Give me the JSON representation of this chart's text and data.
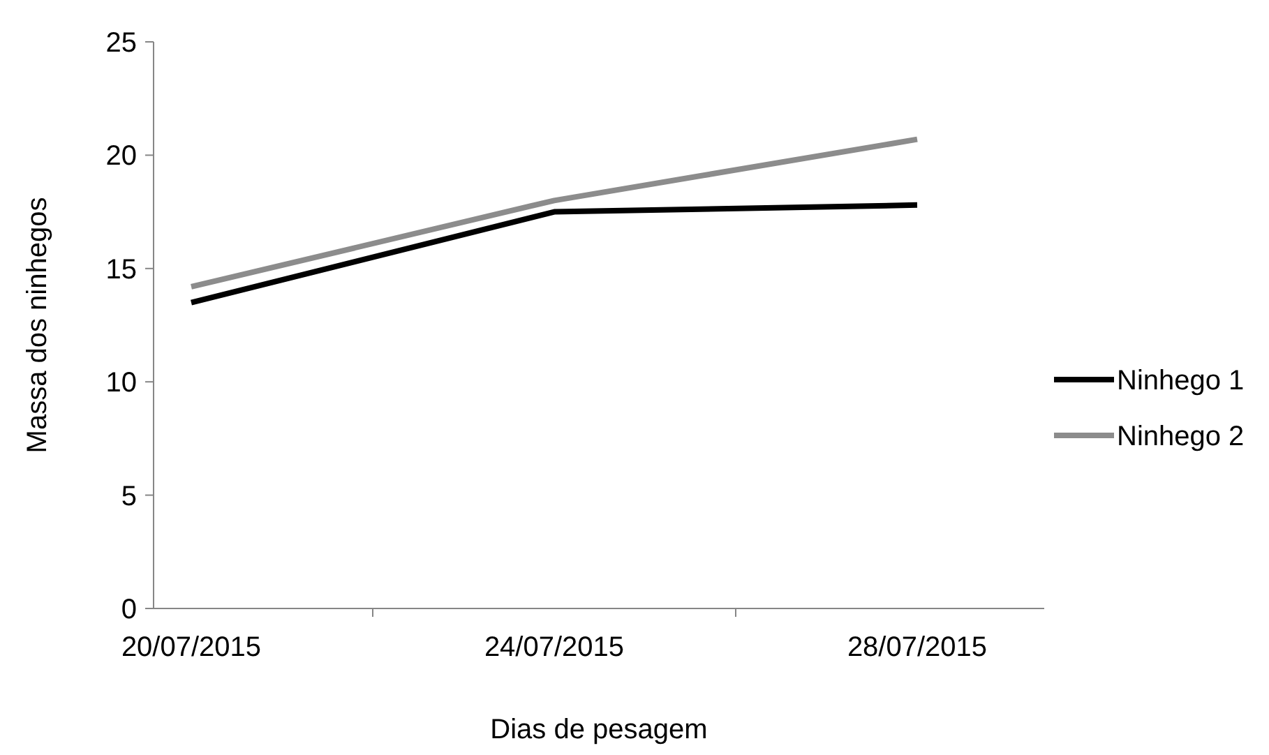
{
  "chart_data": {
    "type": "line",
    "xlabel": "Dias de pesagem",
    "ylabel": "Massa dos ninhegos",
    "categories": [
      "20/07/2015",
      "24/07/2015",
      "28/07/2015"
    ],
    "series": [
      {
        "name": "Ninhego 1",
        "color": "#000000",
        "values": [
          13.5,
          17.5,
          17.8
        ]
      },
      {
        "name": "Ninhego 2",
        "color": "#8c8c8c",
        "values": [
          14.2,
          18.0,
          20.7
        ]
      }
    ],
    "ylim": [
      0,
      25
    ],
    "yticks": [
      0,
      5,
      10,
      15,
      20,
      25
    ],
    "grid": false,
    "legend": "right",
    "marker": "none",
    "line_style": "solid"
  }
}
